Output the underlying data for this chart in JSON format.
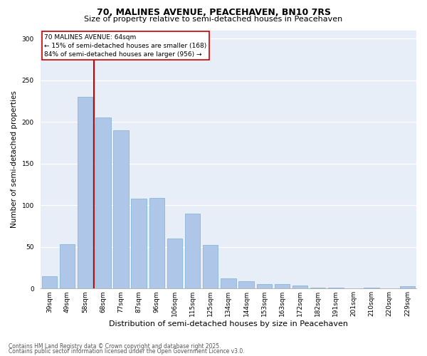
{
  "title1": "70, MALINES AVENUE, PEACEHAVEN, BN10 7RS",
  "title2": "Size of property relative to semi-detached houses in Peacehaven",
  "xlabel": "Distribution of semi-detached houses by size in Peacehaven",
  "ylabel": "Number of semi-detached properties",
  "categories": [
    "39sqm",
    "49sqm",
    "58sqm",
    "68sqm",
    "77sqm",
    "87sqm",
    "96sqm",
    "106sqm",
    "115sqm",
    "125sqm",
    "134sqm",
    "144sqm",
    "153sqm",
    "163sqm",
    "172sqm",
    "182sqm",
    "191sqm",
    "201sqm",
    "210sqm",
    "220sqm",
    "229sqm"
  ],
  "values": [
    15,
    53,
    230,
    205,
    190,
    108,
    109,
    60,
    90,
    52,
    12,
    9,
    5,
    5,
    4,
    1,
    1,
    0,
    1,
    0,
    3
  ],
  "bar_color": "#aec6e8",
  "bar_edge_color": "#7bafd4",
  "red_line_x": 2.5,
  "annotation_title": "70 MALINES AVENUE: 64sqm",
  "annotation_line1": "← 15% of semi-detached houses are smaller (168)",
  "annotation_line2": "84% of semi-detached houses are larger (956) →",
  "annotation_box_color": "#ffffff",
  "annotation_box_edge_color": "#cc0000",
  "red_line_color": "#cc0000",
  "ylim": [
    0,
    310
  ],
  "yticks": [
    0,
    50,
    100,
    150,
    200,
    250,
    300
  ],
  "background_color": "#e8eef7",
  "grid_color": "#ffffff",
  "footer1": "Contains HM Land Registry data © Crown copyright and database right 2025.",
  "footer2": "Contains public sector information licensed under the Open Government Licence v3.0.",
  "title1_fontsize": 9,
  "title2_fontsize": 8,
  "xlabel_fontsize": 8,
  "ylabel_fontsize": 7.5,
  "tick_fontsize": 6.5,
  "ann_fontsize": 6.5,
  "footer_fontsize": 5.5
}
